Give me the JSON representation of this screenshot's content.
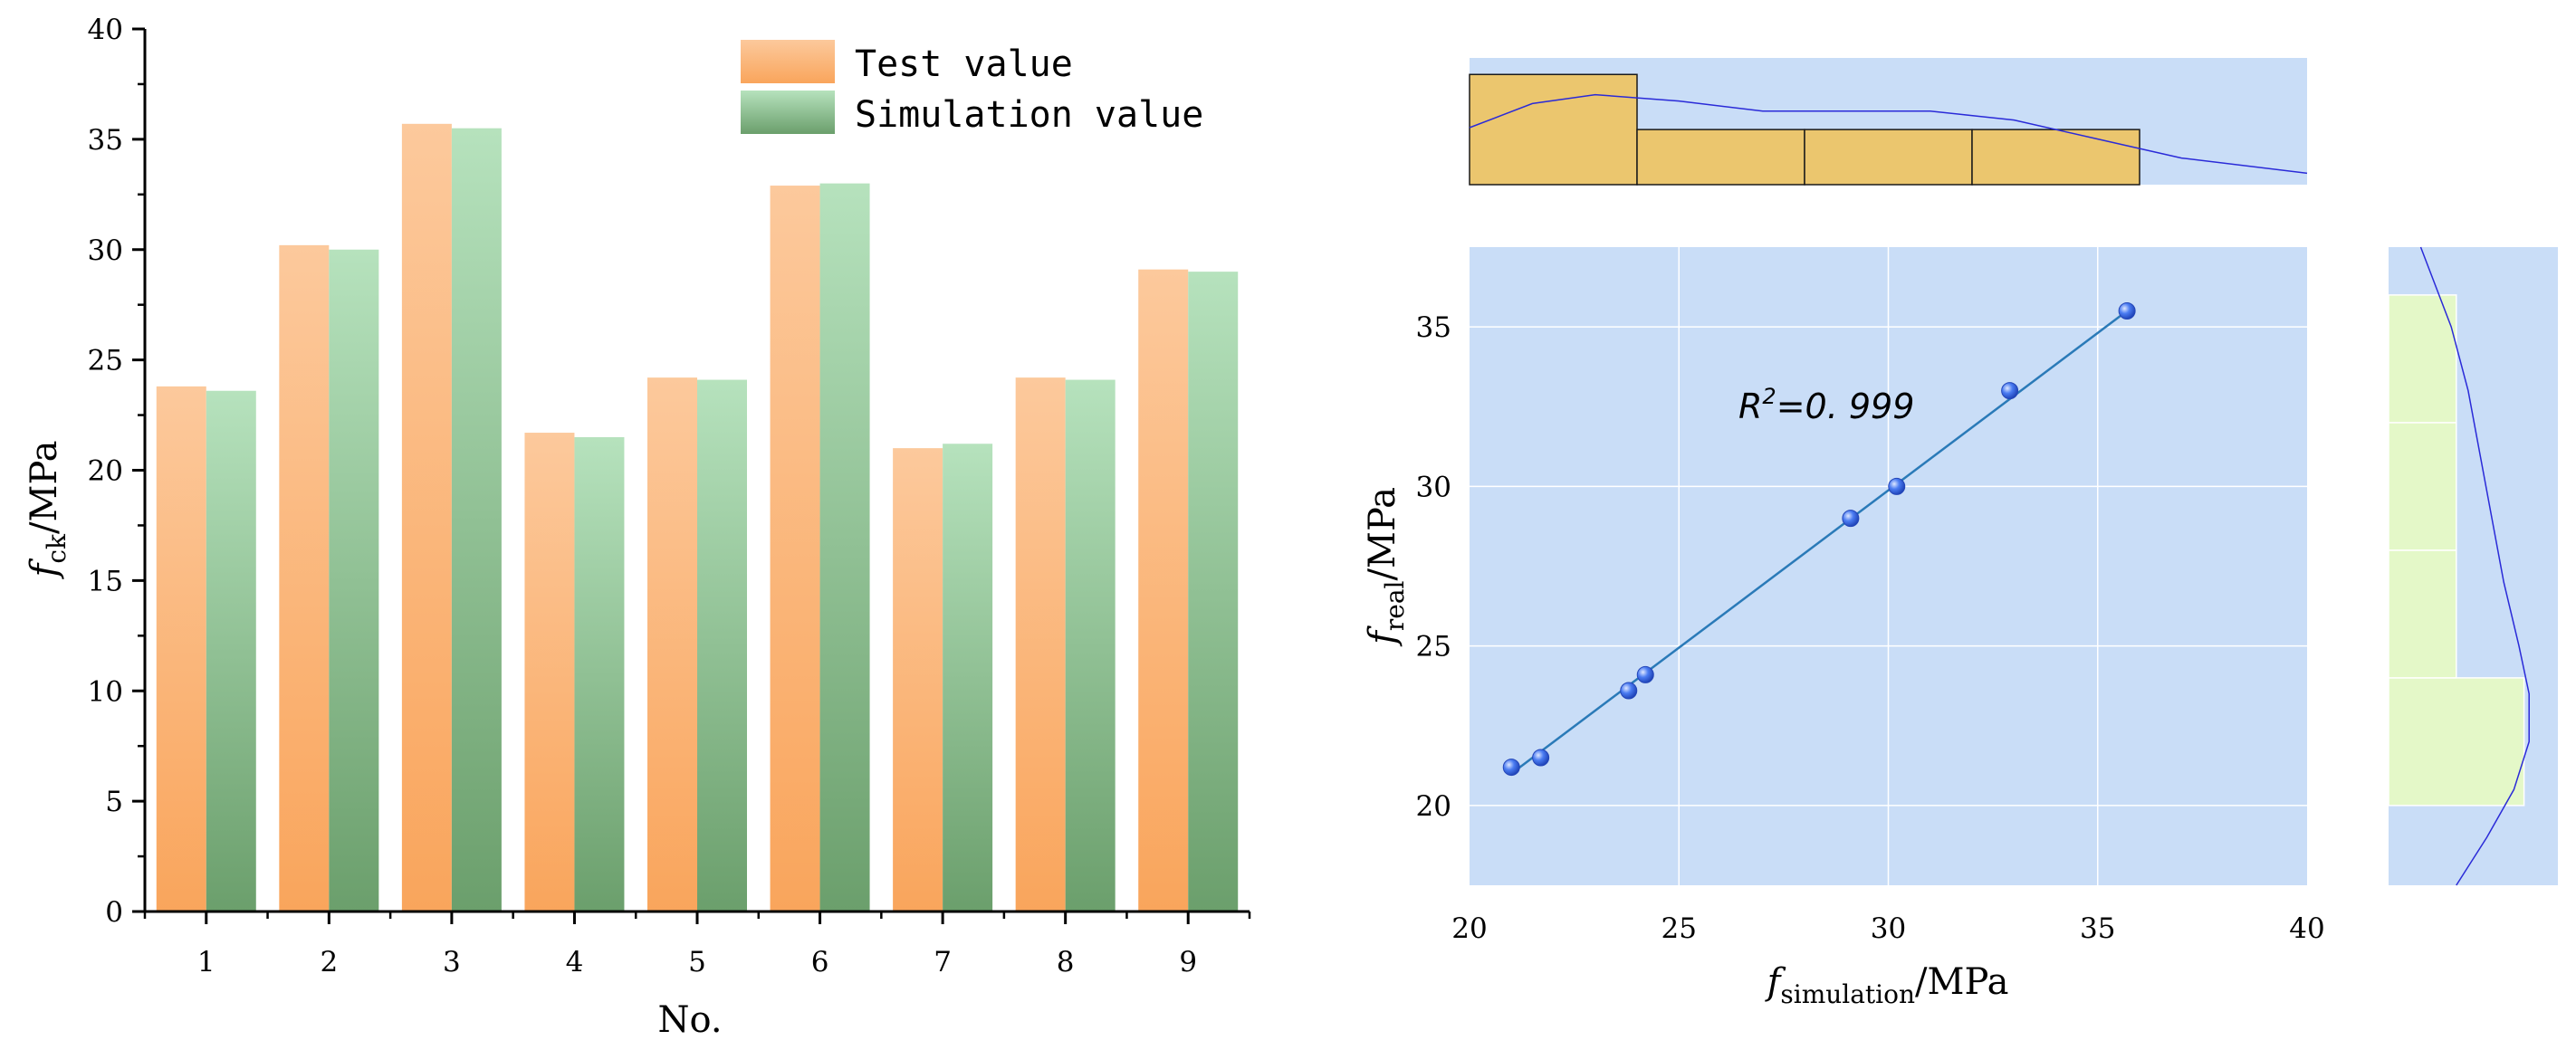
{
  "chart_data": [
    {
      "type": "bar",
      "xlabel": "No.",
      "ylabel": "f_ck/MPa",
      "ylabel_parts": {
        "symbol": "f",
        "sub": "ck",
        "unit": "/MPa"
      },
      "ylim": [
        0,
        40
      ],
      "yticks": [
        "0",
        "5",
        "10",
        "15",
        "20",
        "25",
        "30",
        "35",
        "40"
      ],
      "categories": [
        "1",
        "2",
        "3",
        "4",
        "5",
        "6",
        "7",
        "8",
        "9"
      ],
      "series": [
        {
          "name": "Test value",
          "values": [
            23.8,
            30.2,
            35.7,
            21.7,
            24.2,
            32.9,
            21.0,
            24.2,
            29.1
          ],
          "color_top": "#fcc99c",
          "color_bottom": "#f9a55c"
        },
        {
          "name": "Simulation value",
          "values": [
            23.6,
            30.0,
            35.5,
            21.5,
            24.1,
            33.0,
            21.2,
            24.1,
            29.0
          ],
          "color_top": "#b6e2bd",
          "color_bottom": "#6b9f6c"
        }
      ],
      "legend_position": "top-right"
    },
    {
      "type": "scatter",
      "xlabel": "f_simulation/MPa",
      "ylabel": "f_real/MPa",
      "xlabel_parts": {
        "symbol": "f",
        "sub": "simulation",
        "unit": "/MPa"
      },
      "ylabel_parts": {
        "symbol": "f",
        "sub": "real",
        "unit": "/MPa"
      },
      "xlim": [
        20,
        40
      ],
      "ylim": [
        17.5,
        37.5
      ],
      "xticks": [
        "20",
        "25",
        "30",
        "35",
        "40"
      ],
      "yticks": [
        "20",
        "25",
        "30",
        "35"
      ],
      "annotation": {
        "r": "R",
        "sup": "2",
        "value": "=0. 999"
      },
      "points": [
        {
          "x": 21.0,
          "y": 21.2
        },
        {
          "x": 21.7,
          "y": 21.5
        },
        {
          "x": 23.8,
          "y": 23.6
        },
        {
          "x": 24.2,
          "y": 24.1
        },
        {
          "x": 29.1,
          "y": 29.0
        },
        {
          "x": 30.2,
          "y": 30.0
        },
        {
          "x": 32.9,
          "y": 33.0
        },
        {
          "x": 35.7,
          "y": 35.5
        }
      ],
      "fit_line": {
        "x": [
          21.0,
          35.7
        ],
        "y": [
          21.0,
          35.5
        ]
      },
      "grid": true,
      "background": "#c9ddf7",
      "point_color": "#3d6ff0",
      "line_color": "#2a7ab8"
    },
    {
      "type": "histogram",
      "position": "top-marginal",
      "bins": [
        {
          "from": 20,
          "to": 24,
          "count": 2
        },
        {
          "from": 24,
          "to": 28,
          "count": 1
        },
        {
          "from": 28,
          "to": 32,
          "count": 1
        },
        {
          "from": 32,
          "to": 36,
          "count": 1
        }
      ],
      "count_max": 2.3,
      "curve": [
        {
          "x": 20,
          "d": 0.045
        },
        {
          "x": 21.5,
          "d": 0.064
        },
        {
          "x": 23,
          "d": 0.071
        },
        {
          "x": 25,
          "d": 0.066
        },
        {
          "x": 27,
          "d": 0.058
        },
        {
          "x": 29,
          "d": 0.058
        },
        {
          "x": 31,
          "d": 0.058
        },
        {
          "x": 33,
          "d": 0.051
        },
        {
          "x": 35,
          "d": 0.036
        },
        {
          "x": 37,
          "d": 0.021
        },
        {
          "x": 40,
          "d": 0.009
        }
      ],
      "curve_max": 0.1,
      "fill": "#ebc66e",
      "curve_color": "#2a2ad8"
    },
    {
      "type": "histogram",
      "position": "right-marginal",
      "bins": [
        {
          "from": 20,
          "to": 24,
          "count": 4
        },
        {
          "from": 24,
          "to": 28,
          "count": 2
        },
        {
          "from": 28,
          "to": 32,
          "count": 2
        },
        {
          "from": 32,
          "to": 36,
          "count": 2
        }
      ],
      "count_max": 5,
      "curve": [
        {
          "y": 17.5,
          "d": 0.04
        },
        {
          "y": 19,
          "d": 0.058
        },
        {
          "y": 20.5,
          "d": 0.074
        },
        {
          "y": 22,
          "d": 0.083
        },
        {
          "y": 23.5,
          "d": 0.083
        },
        {
          "y": 25,
          "d": 0.077
        },
        {
          "y": 27,
          "d": 0.068
        },
        {
          "y": 29,
          "d": 0.061
        },
        {
          "y": 31,
          "d": 0.054
        },
        {
          "y": 33,
          "d": 0.047
        },
        {
          "y": 35,
          "d": 0.037
        },
        {
          "y": 37.5,
          "d": 0.019
        }
      ],
      "curve_max": 0.1,
      "fill": "#e4f8c8",
      "curve_color": "#2a2ad8"
    }
  ]
}
